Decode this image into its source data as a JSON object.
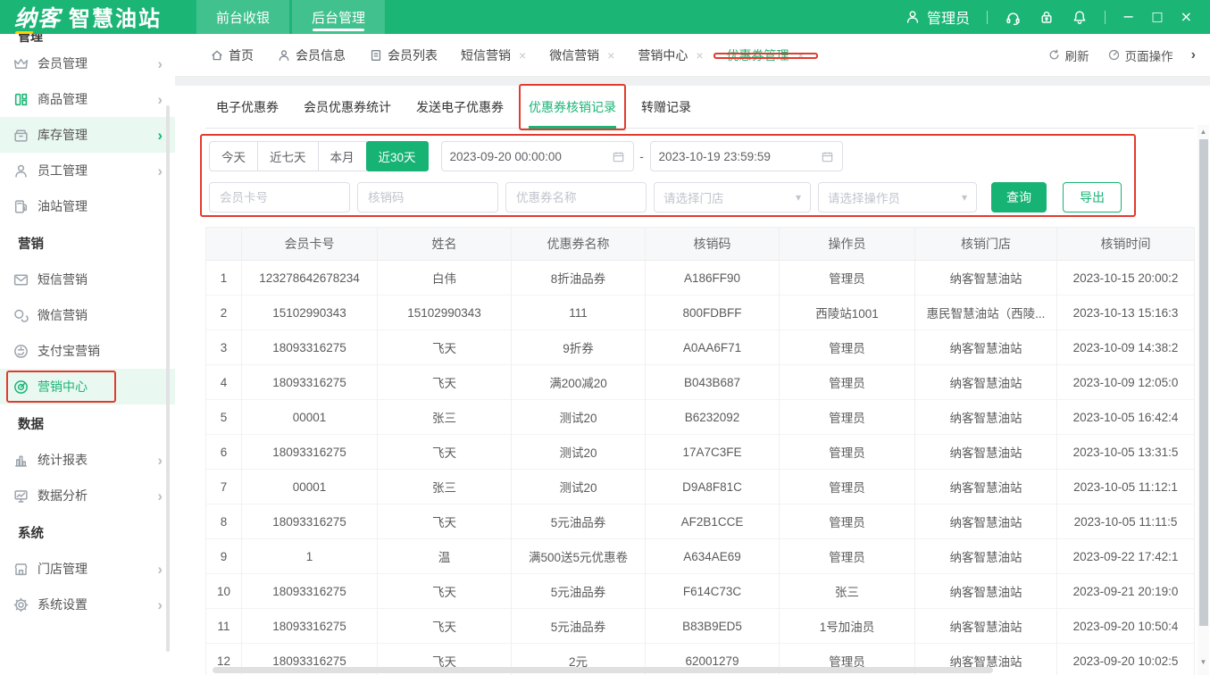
{
  "colors": {
    "topbar_green": "#1bb576",
    "accent_green": "#17b374",
    "highlight_bg": "#e9f8f0",
    "annotation_red": "#e23b2e"
  },
  "glyphs": {
    "chevron": "›",
    "close": "×",
    "minimize": "−",
    "maximize": "□",
    "close_window": "×",
    "dropdown": "▾",
    "scroll_up": "▲",
    "scroll_down": "▼"
  },
  "topbar": {
    "logo_primary": "纳客",
    "logo_secondary": "智慧油站",
    "nav": [
      {
        "label": "前台收银"
      },
      {
        "label": "后台管理"
      }
    ],
    "username": "管理员"
  },
  "sidebar": {
    "clipped_header": "管理",
    "groups": [
      {
        "items": [
          {
            "label": "会员管理"
          },
          {
            "label": "商品管理"
          },
          {
            "label": "库存管理"
          },
          {
            "label": "员工管理"
          },
          {
            "label": "油站管理"
          }
        ]
      },
      {
        "header": "营销",
        "items": [
          {
            "label": "短信营销"
          },
          {
            "label": "微信营销"
          },
          {
            "label": "支付宝营销"
          },
          {
            "label": "营销中心"
          }
        ]
      },
      {
        "header": "数据",
        "items": [
          {
            "label": "统计报表"
          },
          {
            "label": "数据分析"
          }
        ]
      },
      {
        "header": "系统",
        "items": [
          {
            "label": "门店管理"
          },
          {
            "label": "系统设置"
          }
        ]
      }
    ]
  },
  "tabbar": {
    "tabs": [
      {
        "label": "首页"
      },
      {
        "label": "会员信息"
      },
      {
        "label": "会员列表"
      },
      {
        "label": "短信营销"
      },
      {
        "label": "微信营销"
      },
      {
        "label": "营销中心"
      },
      {
        "label": "优惠券管理"
      }
    ],
    "refresh_label": "刷新",
    "page_ops_label": "页面操作"
  },
  "subtabs": {
    "items": [
      "电子优惠券",
      "会员优惠券统计",
      "发送电子优惠券",
      "优惠券核销记录",
      "转赠记录"
    ],
    "active": "优惠券核销记录"
  },
  "filters": {
    "quick_ranges": [
      "今天",
      "近七天",
      "本月",
      "近30天"
    ],
    "active_range": "近30天",
    "date_start": "2023-09-20 00:00:00",
    "date_end": "2023-10-19 23:59:59",
    "range_separator": "-",
    "card_placeholder": "会员卡号",
    "code_placeholder": "核销码",
    "coupon_placeholder": "优惠券名称",
    "store_placeholder": "请选择门店",
    "operator_placeholder": "请选择操作员",
    "search_label": "查询",
    "export_label": "导出"
  },
  "table": {
    "headers": [
      "",
      "会员卡号",
      "姓名",
      "优惠券名称",
      "核销码",
      "操作员",
      "核销门店",
      "核销时间"
    ],
    "rows": [
      [
        "1",
        "123278642678234",
        "白伟",
        "8折油品券",
        "A186FF90",
        "管理员",
        "纳客智慧油站",
        "2023-10-15 20:00:2"
      ],
      [
        "2",
        "15102990343",
        "15102990343",
        "111",
        "800FDBFF",
        "西陵站1001",
        "惠民智慧油站（西陵...",
        "2023-10-13 15:16:3"
      ],
      [
        "3",
        "18093316275",
        "飞天",
        "9折券",
        "A0AA6F71",
        "管理员",
        "纳客智慧油站",
        "2023-10-09 14:38:2"
      ],
      [
        "4",
        "18093316275",
        "飞天",
        "满200减20",
        "B043B687",
        "管理员",
        "纳客智慧油站",
        "2023-10-09 12:05:0"
      ],
      [
        "5",
        "00001",
        "张三",
        "测试20",
        "B6232092",
        "管理员",
        "纳客智慧油站",
        "2023-10-05 16:42:4"
      ],
      [
        "6",
        "18093316275",
        "飞天",
        "测试20",
        "17A7C3FE",
        "管理员",
        "纳客智慧油站",
        "2023-10-05 13:31:5"
      ],
      [
        "7",
        "00001",
        "张三",
        "测试20",
        "D9A8F81C",
        "管理员",
        "纳客智慧油站",
        "2023-10-05 11:12:1"
      ],
      [
        "8",
        "18093316275",
        "飞天",
        "5元油品券",
        "AF2B1CCE",
        "管理员",
        "纳客智慧油站",
        "2023-10-05 11:11:5"
      ],
      [
        "9",
        "1",
        "温",
        "满500送5元优惠卷",
        "A634AE69",
        "管理员",
        "纳客智慧油站",
        "2023-09-22 17:42:1"
      ],
      [
        "10",
        "18093316275",
        "飞天",
        "5元油品券",
        "F614C73C",
        "张三",
        "纳客智慧油站",
        "2023-09-21 20:19:0"
      ],
      [
        "11",
        "18093316275",
        "飞天",
        "5元油品券",
        "B83B9ED5",
        "1号加油员",
        "纳客智慧油站",
        "2023-09-20 10:50:4"
      ],
      [
        "12",
        "18093316275",
        "飞天",
        "2元",
        "62001279",
        "管理员",
        "纳客智慧油站",
        "2023-09-20 10:02:5"
      ]
    ]
  }
}
